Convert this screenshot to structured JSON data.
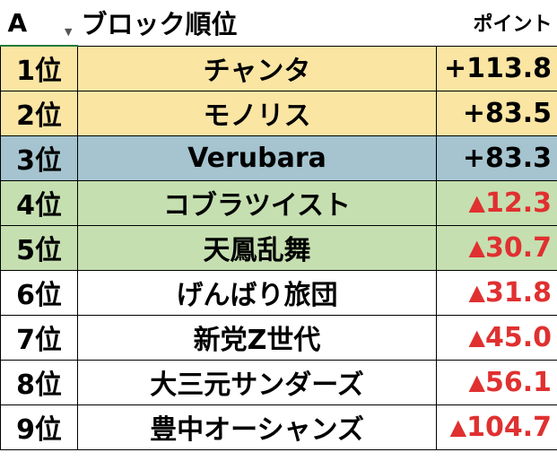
{
  "header": {
    "column_label": "A",
    "filter_icon": "dropdown-arrow-icon",
    "title": "ブロック順位",
    "points_label": "ポイント"
  },
  "colors": {
    "gold": "#fae5a3",
    "blue": "#a5c4cf",
    "green": "#c5dfb0",
    "white": "#ffffff",
    "negative": "#e03030"
  },
  "rows": [
    {
      "rank": "1位",
      "name": "チャンタ",
      "points": "+113.8",
      "negative": false,
      "bg": "gold"
    },
    {
      "rank": "2位",
      "name": "モノリス",
      "points": "+83.5",
      "negative": false,
      "bg": "gold"
    },
    {
      "rank": "3位",
      "name": "Verubara",
      "points": "+83.3",
      "negative": false,
      "bg": "blue"
    },
    {
      "rank": "4位",
      "name": "コブラツイスト",
      "points": "12.3",
      "negative": true,
      "bg": "green"
    },
    {
      "rank": "5位",
      "name": "天鳳乱舞",
      "points": "30.7",
      "negative": true,
      "bg": "green"
    },
    {
      "rank": "6位",
      "name": "げんばり旅団",
      "points": "31.8",
      "negative": true,
      "bg": "white"
    },
    {
      "rank": "7位",
      "name": "新党Z世代",
      "points": "45.0",
      "negative": true,
      "bg": "white"
    },
    {
      "rank": "8位",
      "name": "大三元サンダーズ",
      "points": "56.1",
      "negative": true,
      "bg": "white"
    },
    {
      "rank": "9位",
      "name": "豊中オーシャンズ",
      "points": "104.7",
      "negative": true,
      "bg": "white"
    }
  ],
  "negative_marker": "▲"
}
